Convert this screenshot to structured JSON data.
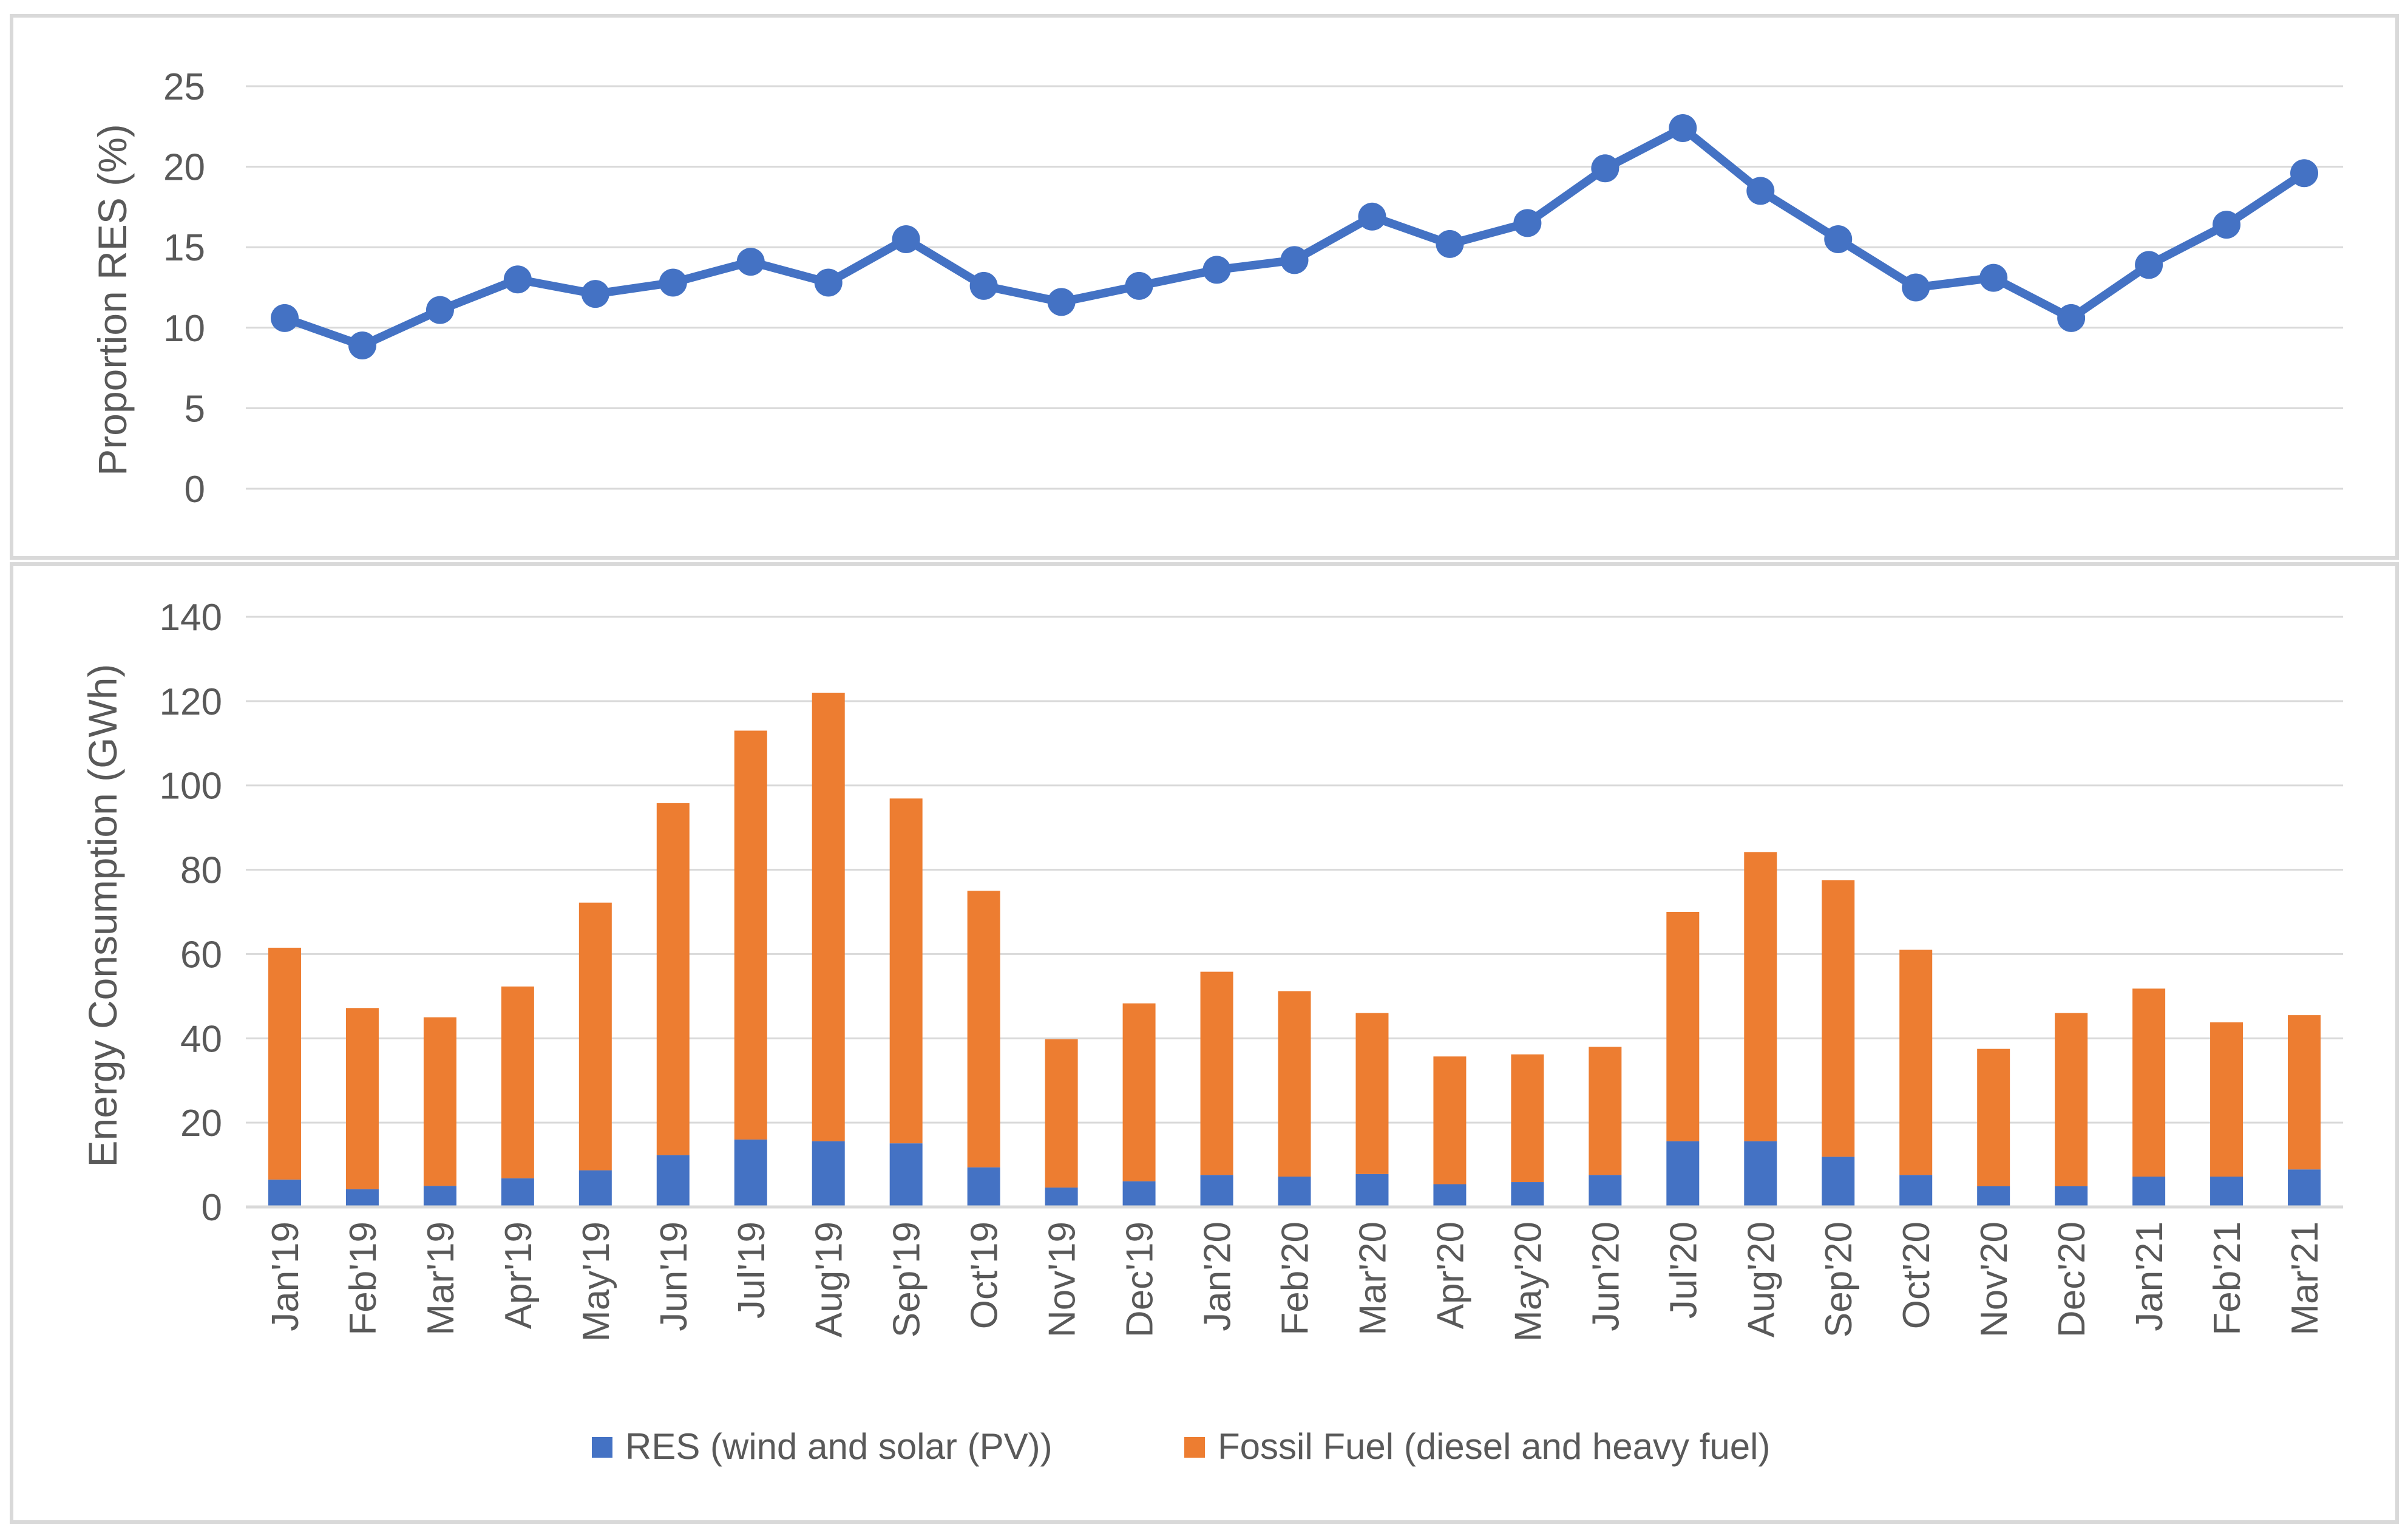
{
  "colors": {
    "res": "#4472C4",
    "fossil": "#ED7D31",
    "grid": "#D9D9D9",
    "text": "#595959",
    "frame": "#D9D9D9"
  },
  "chart_data": [
    {
      "type": "line",
      "title": "",
      "ylabel": "Proportion  RES (%)",
      "xlabel": "",
      "ylim": [
        0,
        25
      ],
      "yticks": [
        0,
        5,
        10,
        15,
        20,
        25
      ],
      "grid": true,
      "categories": [
        "Jan'19",
        "Feb'19",
        "Mar'19",
        "Apr'19",
        "May'19",
        "Jun'19",
        "Jul'19",
        "Aug'19",
        "Sep'19",
        "Oct'19",
        "Nov'19",
        "Dec'19",
        "Jan'20",
        "Feb'20",
        "Mar'20",
        "Apr'20",
        "May'20",
        "Jun'20",
        "Jul'20",
        "Aug'20",
        "Sep'20",
        "Oct'20",
        "Nov'20",
        "Dec'20",
        "Jan'21",
        "Feb'21",
        "Mar'21"
      ],
      "series": [
        {
          "name": "Proportion RES",
          "color": "#4472C4",
          "values": [
            10.6,
            8.9,
            11.1,
            13.0,
            12.1,
            12.8,
            14.1,
            12.8,
            15.5,
            12.6,
            11.6,
            12.6,
            13.6,
            14.2,
            16.9,
            15.2,
            16.5,
            19.9,
            22.4,
            18.5,
            15.5,
            12.5,
            13.1,
            10.6,
            13.9,
            16.4,
            19.6
          ]
        }
      ]
    },
    {
      "type": "bar",
      "stacked": true,
      "title": "",
      "ylabel": "Energy Consumption (GWh)",
      "xlabel": "",
      "ylim": [
        0,
        140
      ],
      "yticks": [
        0,
        20,
        40,
        60,
        80,
        100,
        120,
        140
      ],
      "grid": true,
      "legend_position": "bottom",
      "categories": [
        "Jan'19",
        "Feb'19",
        "Mar'19",
        "Apr'19",
        "May'19",
        "Jun'19",
        "Jul'19",
        "Aug'19",
        "Sep'19",
        "Oct'19",
        "Nov'19",
        "Dec'19",
        "Jan'20",
        "Feb'20",
        "Mar'20",
        "Apr'20",
        "May'20",
        "Jun'20",
        "Jul'20",
        "Aug'20",
        "Sep'20",
        "Oct'20",
        "Nov'20",
        "Dec'20",
        "Jan'21",
        "Feb'21",
        "Mar'21"
      ],
      "series": [
        {
          "name": "RES (wind and solar (PV))",
          "color": "#4472C4",
          "values": [
            6.5,
            4.2,
            5.0,
            6.8,
            8.7,
            12.3,
            16.0,
            15.6,
            15.1,
            9.4,
            4.6,
            6.1,
            7.6,
            7.2,
            7.8,
            5.4,
            5.9,
            7.6,
            15.6,
            15.6,
            11.9,
            7.6,
            4.9,
            4.9,
            7.2,
            7.2,
            8.9
          ]
        },
        {
          "name": "Fossil Fuel (diesel and heavy fuel)",
          "color": "#ED7D31",
          "values": [
            55.0,
            43.0,
            40.0,
            45.5,
            63.5,
            83.5,
            97.0,
            106.4,
            81.8,
            65.6,
            35.2,
            42.2,
            48.2,
            44.0,
            38.2,
            30.3,
            30.3,
            30.4,
            54.4,
            68.6,
            65.6,
            53.4,
            32.6,
            41.1,
            44.6,
            36.6,
            36.6
          ]
        }
      ]
    }
  ]
}
